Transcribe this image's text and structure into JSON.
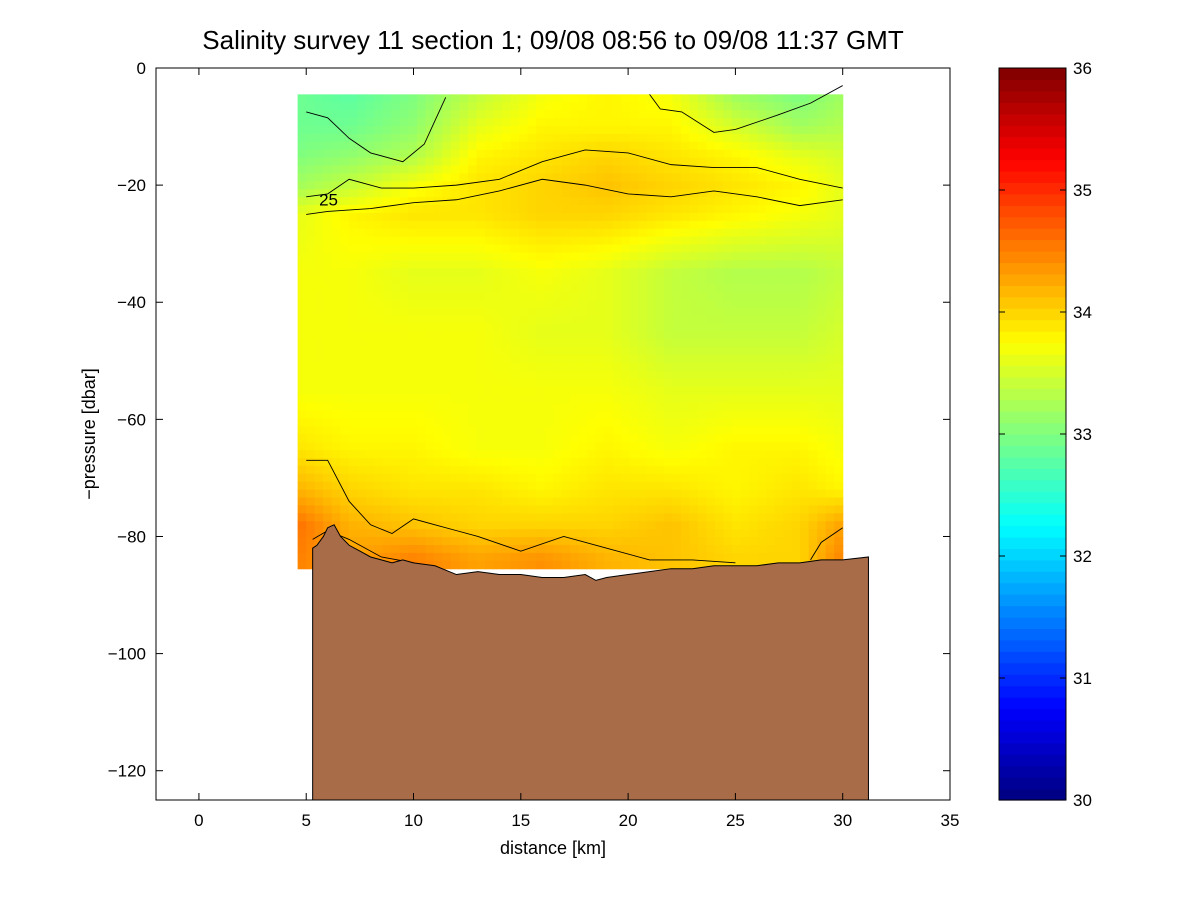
{
  "chart_data": {
    "type": "heatmap",
    "title": "Salinity survey 11 section 1; 09/08 08:56 to 09/08 11:37 GMT",
    "xlabel": "distance [km]",
    "ylabel": "−pressure [dbar]",
    "xlim": [
      -2,
      35
    ],
    "ylim": [
      -125,
      0
    ],
    "xticks": [
      0,
      5,
      10,
      15,
      20,
      25,
      30,
      35
    ],
    "yticks": [
      0,
      -20,
      -40,
      -60,
      -80,
      -100,
      -120
    ],
    "colorbar": {
      "min": 30,
      "max": 36,
      "ticks": [
        30,
        31,
        32,
        33,
        34,
        35,
        36
      ],
      "colormap": "jet"
    },
    "contour_labels": [
      {
        "text": "25",
        "x": 5.6,
        "y": -23.5
      }
    ],
    "bottom_fill_color": "#a86c48",
    "bottom_profile": [
      [
        5.3,
        -82.0
      ],
      [
        5.5,
        -81.5
      ],
      [
        5.8,
        -80.0
      ],
      [
        6.0,
        -78.5
      ],
      [
        6.3,
        -78.0
      ],
      [
        6.6,
        -80.0
      ],
      [
        7.0,
        -81.5
      ],
      [
        7.5,
        -82.5
      ],
      [
        8.0,
        -83.5
      ],
      [
        8.5,
        -84.0
      ],
      [
        9.0,
        -84.5
      ],
      [
        9.5,
        -84.0
      ],
      [
        10.0,
        -84.5
      ],
      [
        11.0,
        -85.0
      ],
      [
        12.0,
        -86.5
      ],
      [
        13.0,
        -86.0
      ],
      [
        14.0,
        -86.5
      ],
      [
        15.0,
        -86.5
      ],
      [
        16.0,
        -87.0
      ],
      [
        17.0,
        -87.0
      ],
      [
        18.0,
        -86.5
      ],
      [
        18.5,
        -87.5
      ],
      [
        19.0,
        -87.0
      ],
      [
        20.0,
        -86.5
      ],
      [
        21.0,
        -86.0
      ],
      [
        22.0,
        -85.5
      ],
      [
        23.0,
        -85.5
      ],
      [
        24.0,
        -85.0
      ],
      [
        25.0,
        -85.0
      ],
      [
        26.0,
        -85.0
      ],
      [
        27.0,
        -84.5
      ],
      [
        28.0,
        -84.5
      ],
      [
        29.0,
        -84.0
      ],
      [
        30.0,
        -84.0
      ],
      [
        31.2,
        -83.5
      ]
    ],
    "salinity_grid": {
      "x": [
        4.5,
        7,
        10,
        13,
        16,
        19,
        22,
        25,
        28,
        30
      ],
      "depth": [
        -5,
        -10,
        -15,
        -20,
        -25,
        -35,
        -45,
        -55,
        -65,
        -72,
        -78,
        -84
      ],
      "values": [
        [
          32.9,
          32.8,
          33.0,
          33.4,
          33.7,
          33.8,
          33.7,
          33.2,
          33.0,
          33.2
        ],
        [
          32.9,
          32.9,
          33.1,
          33.6,
          33.8,
          33.8,
          33.8,
          33.5,
          33.2,
          33.3
        ],
        [
          33.0,
          33.1,
          33.3,
          33.8,
          33.9,
          34.0,
          33.9,
          33.8,
          33.6,
          33.5
        ],
        [
          33.2,
          33.4,
          33.7,
          33.9,
          34.0,
          34.1,
          34.0,
          33.9,
          33.8,
          33.6
        ],
        [
          33.6,
          33.8,
          33.9,
          33.9,
          34.0,
          34.0,
          33.9,
          33.8,
          33.7,
          33.6
        ],
        [
          33.7,
          33.7,
          33.6,
          33.6,
          33.7,
          33.6,
          33.4,
          33.3,
          33.3,
          33.4
        ],
        [
          33.7,
          33.7,
          33.7,
          33.7,
          33.6,
          33.6,
          33.4,
          33.4,
          33.4,
          33.5
        ],
        [
          33.7,
          33.7,
          33.7,
          33.7,
          33.7,
          33.7,
          33.6,
          33.6,
          33.6,
          33.6
        ],
        [
          33.9,
          33.8,
          33.8,
          33.7,
          33.7,
          33.8,
          33.7,
          33.8,
          33.8,
          33.7
        ],
        [
          34.2,
          34.0,
          33.9,
          33.9,
          33.8,
          33.9,
          33.9,
          33.8,
          33.9,
          33.8
        ],
        [
          34.6,
          34.2,
          34.1,
          34.0,
          34.0,
          34.0,
          34.1,
          33.9,
          34.0,
          34.3
        ],
        [
          34.5,
          34.3,
          34.5,
          34.3,
          34.4,
          34.2,
          34.1,
          34.0,
          34.0,
          34.5
        ]
      ]
    },
    "contour_lines": [
      [
        [
          5.0,
          -7.5
        ],
        [
          6.0,
          -8.5
        ],
        [
          7.0,
          -12.0
        ],
        [
          8.0,
          -14.5
        ],
        [
          9.5,
          -16.0
        ],
        [
          10.5,
          -13.0
        ],
        [
          11.5,
          -5.0
        ]
      ],
      [
        [
          21.0,
          -4.5
        ],
        [
          21.5,
          -7.0
        ],
        [
          22.5,
          -7.5
        ],
        [
          24.0,
          -11.0
        ],
        [
          25.0,
          -10.5
        ],
        [
          27.0,
          -8.0
        ],
        [
          28.5,
          -6.0
        ],
        [
          30.0,
          -3.0
        ]
      ],
      [
        [
          5.0,
          -22.0
        ],
        [
          6.0,
          -21.5
        ],
        [
          7.0,
          -19.0
        ],
        [
          8.5,
          -20.5
        ],
        [
          10.0,
          -20.5
        ],
        [
          12.0,
          -20.0
        ],
        [
          14.0,
          -19.0
        ],
        [
          16.0,
          -16.0
        ],
        [
          18.0,
          -14.0
        ],
        [
          20.0,
          -14.5
        ],
        [
          22.0,
          -16.5
        ],
        [
          24.0,
          -17.0
        ],
        [
          26.0,
          -17.0
        ],
        [
          28.0,
          -19.0
        ],
        [
          30.0,
          -20.5
        ]
      ],
      [
        [
          5.0,
          -25.0
        ],
        [
          6.0,
          -24.5
        ],
        [
          8.0,
          -24.0
        ],
        [
          10.0,
          -23.0
        ],
        [
          12.0,
          -22.5
        ],
        [
          14.0,
          -21.0
        ],
        [
          16.0,
          -19.0
        ],
        [
          18.0,
          -20.0
        ],
        [
          20.0,
          -21.5
        ],
        [
          22.0,
          -22.0
        ],
        [
          24.0,
          -21.0
        ],
        [
          26.0,
          -22.0
        ],
        [
          28.0,
          -23.5
        ],
        [
          30.0,
          -22.5
        ]
      ],
      [
        [
          5.0,
          -67.0
        ],
        [
          6.0,
          -67.0
        ],
        [
          7.0,
          -74.0
        ],
        [
          8.0,
          -78.0
        ],
        [
          9.0,
          -79.5
        ],
        [
          10.0,
          -77.0
        ],
        [
          11.0,
          -78.0
        ],
        [
          12.0,
          -79.0
        ],
        [
          13.0,
          -80.0
        ],
        [
          15.0,
          -82.5
        ],
        [
          17.0,
          -80.0
        ],
        [
          19.0,
          -82.0
        ],
        [
          21.0,
          -84.0
        ],
        [
          23.0,
          -84.0
        ],
        [
          25.0,
          -84.5
        ]
      ],
      [
        [
          5.3,
          -80.5
        ],
        [
          6.0,
          -79.0
        ],
        [
          7.0,
          -80.5
        ],
        [
          8.5,
          -83.5
        ],
        [
          10.0,
          -84.5
        ]
      ],
      [
        [
          28.5,
          -84.0
        ],
        [
          29.0,
          -81.0
        ],
        [
          30.0,
          -78.5
        ]
      ]
    ]
  }
}
